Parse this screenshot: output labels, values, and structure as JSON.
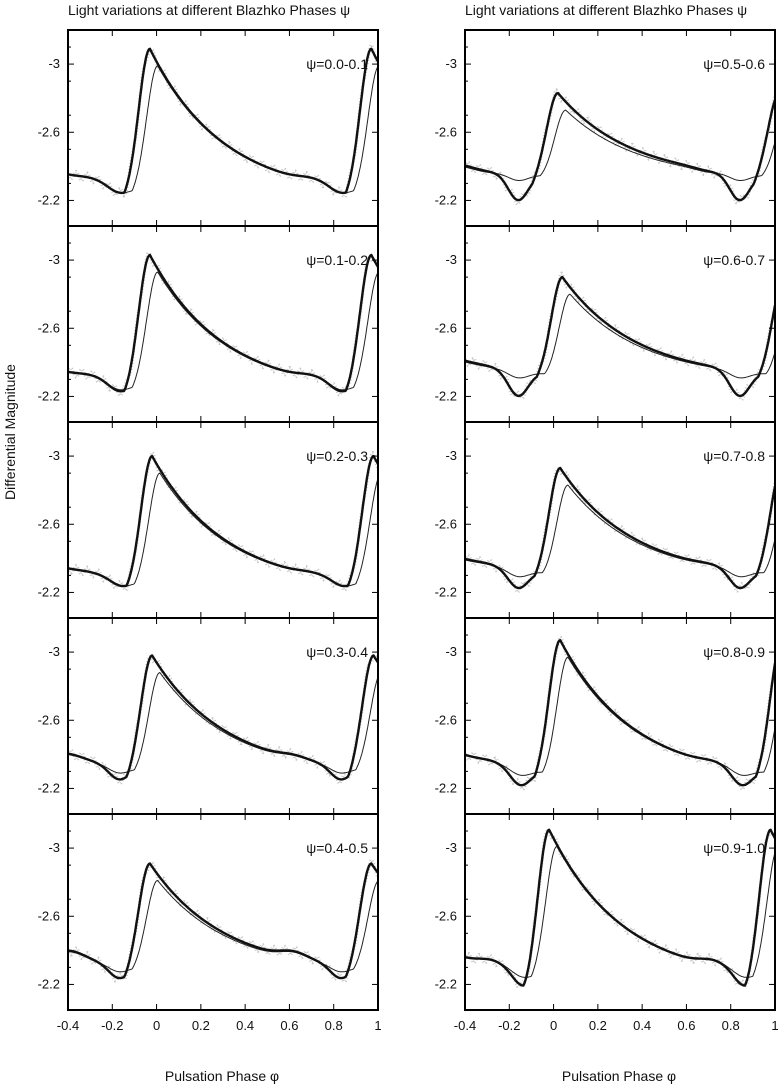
{
  "figure": {
    "left_title": "Light variations at different Blazhko Phases ψ",
    "right_title": "Light variations at different Blazhko Phases ψ",
    "ylabel": "Differential Magnitude",
    "xlabel": "Pulsation Phase φ"
  },
  "chart_data": [
    {
      "type": "line",
      "title": "ψ=0.0-0.1",
      "xlabel": "Pulsation Phase φ",
      "ylabel": "Differential Magnitude",
      "xlim": [
        -0.4,
        1.0
      ],
      "ylim": [
        -2.05,
        -3.2
      ],
      "xticks": [
        -0.4,
        -0.2,
        0,
        0.2,
        0.4,
        0.6,
        0.8,
        1
      ],
      "yticks": [
        -3,
        -2.6,
        -2.2
      ],
      "params": {
        "max_x": -0.03,
        "max_y": -3.09,
        "min_x": -0.17,
        "min_y": -2.18,
        "bump_x": 0.7,
        "bump_y": -2.25,
        "floor": -2.22
      },
      "series": [
        {
          "values": [
            [
              -0.4,
              -2.22
            ],
            [
              -0.17,
              -2.18
            ],
            [
              -0.03,
              -3.09
            ],
            [
              0.2,
              -2.72
            ],
            [
              0.5,
              -2.38
            ],
            [
              0.7,
              -2.25
            ],
            [
              0.83,
              -2.18
            ],
            [
              0.97,
              -3.09
            ]
          ]
        }
      ]
    },
    {
      "type": "line",
      "title": "ψ=0.1-0.2",
      "xlabel": "Pulsation Phase φ",
      "ylabel": "Differential Magnitude",
      "xlim": [
        -0.4,
        1.0
      ],
      "ylim": [
        -2.05,
        -3.2
      ],
      "xticks": [
        -0.4,
        -0.2,
        0,
        0.2,
        0.4,
        0.6,
        0.8,
        1
      ],
      "yticks": [
        -3,
        -2.6,
        -2.2
      ],
      "params": {
        "max_x": -0.03,
        "max_y": -3.03,
        "min_x": -0.17,
        "min_y": -2.17,
        "bump_x": 0.7,
        "bump_y": -2.25,
        "floor": -2.22
      },
      "series": [
        {
          "values": [
            [
              -0.4,
              -2.22
            ],
            [
              -0.17,
              -2.17
            ],
            [
              -0.03,
              -3.03
            ],
            [
              0.2,
              -2.7
            ],
            [
              0.5,
              -2.38
            ],
            [
              0.7,
              -2.25
            ],
            [
              0.83,
              -2.17
            ],
            [
              0.97,
              -3.03
            ]
          ]
        }
      ]
    },
    {
      "type": "line",
      "title": "ψ=0.2-0.3",
      "xlabel": "Pulsation Phase φ",
      "ylabel": "Differential Magnitude",
      "xlim": [
        -0.4,
        1.0
      ],
      "ylim": [
        -2.05,
        -3.2
      ],
      "xticks": [
        -0.4,
        -0.2,
        0,
        0.2,
        0.4,
        0.6,
        0.8,
        1
      ],
      "yticks": [
        -3,
        -2.6,
        -2.2
      ],
      "params": {
        "max_x": -0.02,
        "max_y": -3.0,
        "min_x": -0.16,
        "min_y": -2.18,
        "bump_x": 0.7,
        "bump_y": -2.24,
        "floor": -2.22
      },
      "series": [
        {
          "values": [
            [
              -0.4,
              -2.22
            ],
            [
              -0.16,
              -2.18
            ],
            [
              -0.02,
              -3.0
            ],
            [
              0.2,
              -2.7
            ],
            [
              0.5,
              -2.38
            ],
            [
              0.7,
              -2.24
            ],
            [
              0.84,
              -2.18
            ],
            [
              0.98,
              -3.0
            ]
          ]
        }
      ]
    },
    {
      "type": "line",
      "title": "ψ=0.3-0.4",
      "xlabel": "Pulsation Phase φ",
      "ylabel": "Differential Magnitude",
      "xlim": [
        -0.4,
        1.0
      ],
      "ylim": [
        -2.05,
        -3.2
      ],
      "xticks": [
        -0.4,
        -0.2,
        0,
        0.2,
        0.4,
        0.6,
        0.8,
        1
      ],
      "yticks": [
        -3,
        -2.6,
        -2.2
      ],
      "params": {
        "max_x": -0.02,
        "max_y": -2.98,
        "min_x": -0.17,
        "min_y": -2.2,
        "bump_x": 0.62,
        "bump_y": -2.31,
        "floor": -2.28
      },
      "series": [
        {
          "values": [
            [
              -0.4,
              -2.28
            ],
            [
              -0.17,
              -2.2
            ],
            [
              -0.02,
              -2.98
            ],
            [
              0.2,
              -2.62
            ],
            [
              0.5,
              -2.32
            ],
            [
              0.62,
              -2.31
            ],
            [
              0.83,
              -2.2
            ],
            [
              0.98,
              -2.98
            ]
          ]
        }
      ]
    },
    {
      "type": "line",
      "title": "ψ=0.4-0.5",
      "xlabel": "Pulsation Phase φ",
      "ylabel": "Differential Magnitude",
      "xlim": [
        -0.4,
        1.0
      ],
      "ylim": [
        -2.05,
        -3.2
      ],
      "xticks": [
        -0.4,
        -0.2,
        0,
        0.2,
        0.4,
        0.6,
        0.8,
        1
      ],
      "yticks": [
        -3,
        -2.6,
        -2.2
      ],
      "params": {
        "max_x": -0.03,
        "max_y": -2.91,
        "min_x": -0.17,
        "min_y": -2.19,
        "bump_x": 0.62,
        "bump_y": -2.33,
        "floor": -2.27
      },
      "series": [
        {
          "values": [
            [
              -0.4,
              -2.27
            ],
            [
              -0.17,
              -2.19
            ],
            [
              -0.03,
              -2.91
            ],
            [
              0.2,
              -2.58
            ],
            [
              0.5,
              -2.3
            ],
            [
              0.62,
              -2.33
            ],
            [
              0.82,
              -2.19
            ],
            [
              0.97,
              -2.91
            ]
          ]
        }
      ]
    },
    {
      "type": "line",
      "title": "ψ=0.5-0.6",
      "xlabel": "Pulsation Phase φ",
      "ylabel": "Differential Magnitude",
      "xlim": [
        -0.4,
        1.0
      ],
      "ylim": [
        -2.05,
        -3.2
      ],
      "xticks": [
        -0.4,
        -0.2,
        0,
        0.2,
        0.4,
        0.6,
        0.8,
        1
      ],
      "yticks": [
        -3,
        -2.6,
        -2.2
      ],
      "params": {
        "max_x": 0.02,
        "max_y": -2.83,
        "min_x": -0.16,
        "min_y": -2.16,
        "bump_x": 0.7,
        "bump_y": -2.3,
        "floor": -2.32
      },
      "series": [
        {
          "values": [
            [
              -0.4,
              -2.32
            ],
            [
              -0.16,
              -2.16
            ],
            [
              0.02,
              -2.83
            ],
            [
              0.2,
              -2.62
            ],
            [
              0.5,
              -2.42
            ],
            [
              0.7,
              -2.3
            ],
            [
              0.84,
              -2.16
            ],
            [
              1.0,
              -2.83
            ]
          ]
        }
      ]
    },
    {
      "type": "line",
      "title": "ψ=0.6-0.7",
      "xlabel": "Pulsation Phase φ",
      "ylabel": "Differential Magnitude",
      "xlim": [
        -0.4,
        1.0
      ],
      "ylim": [
        -2.05,
        -3.2
      ],
      "xticks": [
        -0.4,
        -0.2,
        0,
        0.2,
        0.4,
        0.6,
        0.8,
        1
      ],
      "yticks": [
        -3,
        -2.6,
        -2.2
      ],
      "params": {
        "max_x": 0.04,
        "max_y": -2.9,
        "min_x": -0.16,
        "min_y": -2.15,
        "bump_x": 0.7,
        "bump_y": -2.3,
        "floor": -2.3
      },
      "series": [
        {
          "values": [
            [
              -0.4,
              -2.3
            ],
            [
              -0.16,
              -2.15
            ],
            [
              0.04,
              -2.9
            ],
            [
              0.2,
              -2.68
            ],
            [
              0.5,
              -2.4
            ],
            [
              0.7,
              -2.3
            ],
            [
              0.84,
              -2.15
            ],
            [
              1.0,
              -2.85
            ]
          ]
        }
      ]
    },
    {
      "type": "line",
      "title": "ψ=0.7-0.8",
      "xlabel": "Pulsation Phase φ",
      "ylabel": "Differential Magnitude",
      "xlim": [
        -0.4,
        1.0
      ],
      "ylim": [
        -2.05,
        -3.2
      ],
      "xticks": [
        -0.4,
        -0.2,
        0,
        0.2,
        0.4,
        0.6,
        0.8,
        1
      ],
      "yticks": [
        -3,
        -2.6,
        -2.2
      ],
      "params": {
        "max_x": 0.03,
        "max_y": -2.93,
        "min_x": -0.16,
        "min_y": -2.17,
        "bump_x": 0.7,
        "bump_y": -2.29,
        "floor": -2.28
      },
      "series": [
        {
          "values": [
            [
              -0.4,
              -2.28
            ],
            [
              -0.16,
              -2.17
            ],
            [
              0.03,
              -2.93
            ],
            [
              0.2,
              -2.66
            ],
            [
              0.5,
              -2.36
            ],
            [
              0.7,
              -2.29
            ],
            [
              0.84,
              -2.17
            ],
            [
              1.0,
              -2.9
            ]
          ]
        }
      ]
    },
    {
      "type": "line",
      "title": "ψ=0.8-0.9",
      "xlabel": "Pulsation Phase φ",
      "ylabel": "Differential Magnitude",
      "xlim": [
        -0.4,
        1.0
      ],
      "ylim": [
        -2.05,
        -3.2
      ],
      "xticks": [
        -0.4,
        -0.2,
        0,
        0.2,
        0.4,
        0.6,
        0.8,
        1
      ],
      "yticks": [
        -3,
        -2.6,
        -2.2
      ],
      "params": {
        "max_x": 0.03,
        "max_y": -3.07,
        "min_x": -0.15,
        "min_y": -2.15,
        "bump_x": 0.72,
        "bump_y": -2.27,
        "floor": -2.25
      },
      "series": [
        {
          "values": [
            [
              -0.4,
              -2.25
            ],
            [
              -0.15,
              -2.15
            ],
            [
              0.03,
              -3.07
            ],
            [
              0.2,
              -2.72
            ],
            [
              0.5,
              -2.38
            ],
            [
              0.72,
              -2.27
            ],
            [
              0.85,
              -2.15
            ],
            [
              1.0,
              -2.95
            ]
          ]
        }
      ]
    },
    {
      "type": "line",
      "title": "ψ=0.9-1.0",
      "xlabel": "Pulsation Phase φ",
      "ylabel": "Differential Magnitude",
      "xlim": [
        -0.4,
        1.0
      ],
      "ylim": [
        -2.05,
        -3.2
      ],
      "xticks": [
        -0.4,
        -0.2,
        0,
        0.2,
        0.4,
        0.6,
        0.8,
        1
      ],
      "yticks": [
        -3,
        -2.6,
        -2.2
      ],
      "params": {
        "max_x": -0.02,
        "max_y": -3.11,
        "min_x": -0.14,
        "min_y": -2.13,
        "bump_x": 0.72,
        "bump_y": -2.27,
        "floor": -2.22
      },
      "series": [
        {
          "values": [
            [
              -0.4,
              -2.22
            ],
            [
              -0.14,
              -2.13
            ],
            [
              -0.02,
              -3.11
            ],
            [
              0.2,
              -2.72
            ],
            [
              0.5,
              -2.38
            ],
            [
              0.72,
              -2.27
            ],
            [
              0.86,
              -2.13
            ],
            [
              1.0,
              -3.05
            ]
          ]
        }
      ]
    }
  ]
}
